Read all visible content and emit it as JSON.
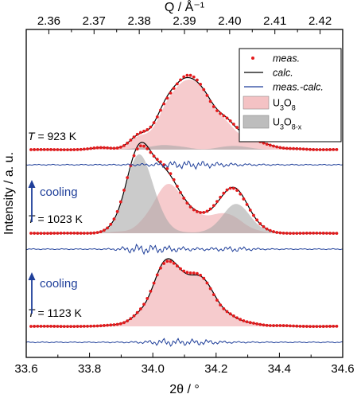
{
  "chart_data": {
    "type": "line",
    "title": "",
    "xlabel_bottom": "2θ / °",
    "xlabel_top": "Q / Å⁻¹",
    "ylabel": "Intensity / a. u.",
    "xlim": [
      33.6,
      34.6
    ],
    "x_ticks": [
      "33.6",
      "33.8",
      "34.0",
      "34.2",
      "34.4",
      "34.6"
    ],
    "q_lim": [
      2.355,
      2.425
    ],
    "q_ticks": [
      "2.36",
      "2.37",
      "2.38",
      "2.39",
      "2.40",
      "2.41",
      "2.42"
    ],
    "legend": {
      "placement": "top-right",
      "entries": [
        {
          "label": "meas.",
          "kind": "dots",
          "color": "#e41a1c"
        },
        {
          "label": "calc.",
          "kind": "line",
          "color": "#000000"
        },
        {
          "label": "meas.-calc.",
          "kind": "line",
          "color": "#1f3f9a"
        },
        {
          "label": "U",
          "sub": "3",
          "label2": "O",
          "sub2": "8",
          "kind": "patch",
          "color": "#f4c2c4"
        },
        {
          "label": "U",
          "sub": "3",
          "label2": "O",
          "sub2": "8-x",
          "kind": "patch",
          "color": "#bdbdbd"
        }
      ]
    },
    "panels": [
      {
        "T_prefix": "T",
        "T_label": " = 923 K",
        "u3o8": [
          [
            33.84,
            0.05
          ],
          [
            33.96,
            0.32
          ],
          [
            34.04,
            0.82
          ],
          [
            34.09,
            0.99
          ],
          [
            34.13,
            0.86
          ],
          [
            34.17,
            0.84
          ],
          [
            34.23,
            0.57
          ],
          [
            34.3,
            0.23
          ],
          [
            34.36,
            0.1
          ],
          [
            34.45,
            0.02
          ]
        ],
        "u3o8x": [
          [
            33.96,
            0.04
          ],
          [
            34.03,
            0.1
          ],
          [
            34.09,
            0.06
          ],
          [
            34.22,
            0.04
          ],
          [
            34.26,
            0.06
          ],
          [
            34.3,
            0.03
          ]
        ]
      },
      {
        "T_prefix": "T",
        "T_label": " = 1023 K",
        "u3o8": [
          [
            33.89,
            0.04
          ],
          [
            33.98,
            0.28
          ],
          [
            34.03,
            0.64
          ],
          [
            34.06,
            0.62
          ],
          [
            34.1,
            0.43
          ],
          [
            34.15,
            0.3
          ],
          [
            34.21,
            0.37
          ],
          [
            34.26,
            0.3
          ],
          [
            34.32,
            0.06
          ]
        ],
        "u3o8x": [
          [
            33.89,
            0.1
          ],
          [
            33.93,
            0.55
          ],
          [
            33.95,
            0.96
          ],
          [
            33.98,
            0.85
          ],
          [
            34.02,
            0.3
          ],
          [
            34.1,
            0.02
          ],
          [
            34.2,
            0.1
          ],
          [
            34.25,
            0.52
          ],
          [
            34.29,
            0.37
          ],
          [
            34.34,
            0.05
          ]
        ],
        "show_cooling": true
      },
      {
        "T_prefix": "T",
        "T_label": " = 1123 K",
        "u3o8": [
          [
            33.88,
            0.04
          ],
          [
            33.96,
            0.3
          ],
          [
            34.02,
            0.86
          ],
          [
            34.05,
            1.0
          ],
          [
            34.09,
            0.81
          ],
          [
            34.14,
            0.91
          ],
          [
            34.18,
            0.67
          ],
          [
            34.24,
            0.26
          ],
          [
            34.31,
            0.08
          ],
          [
            34.4,
            0.02
          ]
        ],
        "show_cooling": true
      }
    ],
    "cooling_label": "cooling"
  }
}
